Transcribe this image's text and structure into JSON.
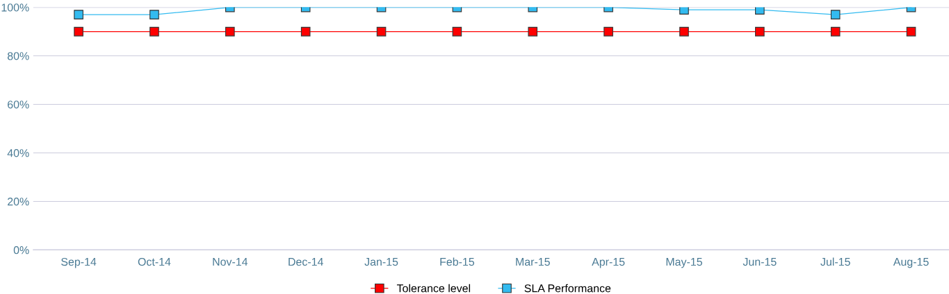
{
  "chart_data": {
    "type": "line",
    "categories": [
      "Sep-14",
      "Oct-14",
      "Nov-14",
      "Dec-14",
      "Jan-15",
      "Feb-15",
      "Mar-15",
      "Apr-15",
      "May-15",
      "Jun-15",
      "Jul-15",
      "Aug-15"
    ],
    "series": [
      {
        "name": "Tolerance level",
        "color": "#ff0000",
        "values": [
          90,
          90,
          90,
          90,
          90,
          90,
          90,
          90,
          90,
          90,
          90,
          90
        ]
      },
      {
        "name": "SLA Performance",
        "color": "#33bbf0",
        "values": [
          97,
          97,
          100,
          100,
          100,
          100,
          100,
          100,
          99,
          99,
          97,
          100
        ]
      }
    ],
    "ylim": [
      0,
      100
    ],
    "yticks": [
      {
        "value": 0,
        "label": "0%"
      },
      {
        "value": 20,
        "label": "20%"
      },
      {
        "value": 40,
        "label": "40%"
      },
      {
        "value": 60,
        "label": "60%"
      },
      {
        "value": 80,
        "label": "80%"
      },
      {
        "value": 100,
        "label": "100%"
      }
    ],
    "grid": "y",
    "legend": "bottom",
    "marker": "square",
    "line_style": "solid"
  }
}
